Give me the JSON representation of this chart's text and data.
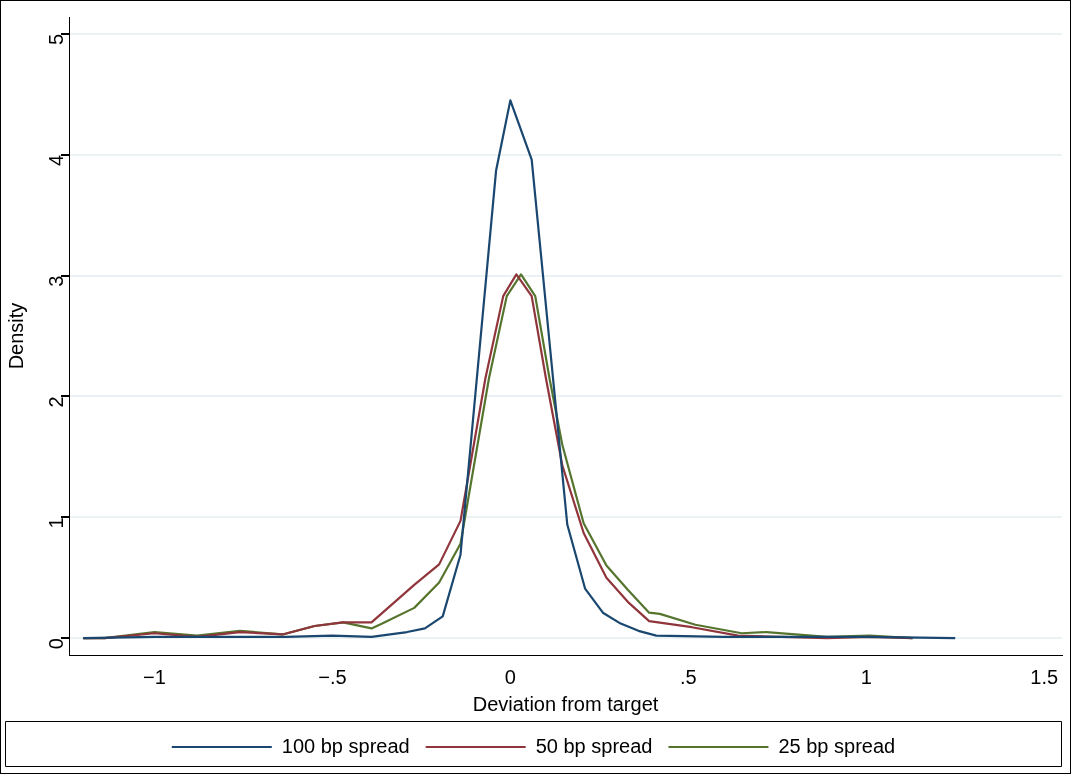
{
  "chart_data": {
    "type": "line",
    "xlabel": "Deviation from target",
    "ylabel": "Density",
    "xlim": [
      -1.24,
      1.55
    ],
    "ylim": [
      -0.14,
      5.14
    ],
    "xticks": [
      {
        "value": -1,
        "label": "−1"
      },
      {
        "value": -0.5,
        "label": "−.5"
      },
      0,
      {
        "value": 0.5,
        "label": ".5"
      },
      1,
      1.5
    ],
    "yticks": [
      0,
      1,
      2,
      3,
      4,
      5
    ],
    "grid": "y",
    "legend": "bottom",
    "marker": "none",
    "line_style": "solid",
    "series": [
      {
        "name": "100 bp spread",
        "color": "#1a476f",
        "x": [
          -1.2,
          -1.0,
          -0.63,
          -0.5,
          -0.39,
          -0.29,
          -0.24,
          -0.19,
          -0.14,
          -0.04,
          0.0,
          0.06,
          0.16,
          0.21,
          0.26,
          0.31,
          0.36,
          0.41,
          0.6,
          1.0,
          1.25
        ],
        "values": [
          0,
          0.01,
          0.01,
          0.02,
          0.01,
          0.05,
          0.08,
          0.18,
          0.69,
          3.87,
          4.45,
          3.96,
          0.94,
          0.41,
          0.21,
          0.12,
          0.06,
          0.02,
          0.01,
          0.01,
          0
        ]
      },
      {
        "name": "50 bp spread",
        "color": "#90353b",
        "x": [
          -1.2,
          -1.14,
          -1.0,
          -0.88,
          -0.76,
          -0.64,
          -0.55,
          -0.47,
          -0.39,
          -0.27,
          -0.2,
          -0.14,
          -0.07,
          -0.02,
          0.017,
          0.06,
          0.1,
          0.146,
          0.206,
          0.27,
          0.33,
          0.39,
          0.51,
          0.64,
          0.89,
          1.01,
          1.13
        ],
        "values": [
          0,
          0,
          0.04,
          0.01,
          0.05,
          0.03,
          0.1,
          0.13,
          0.13,
          0.44,
          0.61,
          0.97,
          2.15,
          2.83,
          3.01,
          2.83,
          2.15,
          1.43,
          0.87,
          0.5,
          0.3,
          0.14,
          0.09,
          0.02,
          0,
          0.01,
          0
        ]
      },
      {
        "name": "25 bp spread",
        "color": "#55752f",
        "x": [
          -1.2,
          -1.14,
          -1.0,
          -0.88,
          -0.76,
          -0.64,
          -0.55,
          -0.47,
          -0.39,
          -0.36,
          -0.27,
          -0.2,
          -0.14,
          -0.06,
          -0.01,
          0.03,
          0.07,
          0.11,
          0.146,
          0.206,
          0.27,
          0.33,
          0.39,
          0.42,
          0.52,
          0.65,
          0.72,
          0.89,
          1.01,
          1.13
        ],
        "values": [
          0,
          0,
          0.05,
          0.02,
          0.06,
          0.03,
          0.1,
          0.13,
          0.08,
          0.12,
          0.25,
          0.46,
          0.78,
          2.15,
          2.83,
          3.01,
          2.83,
          2.15,
          1.6,
          0.95,
          0.6,
          0.4,
          0.21,
          0.2,
          0.11,
          0.04,
          0.05,
          0.01,
          0.02,
          0
        ]
      }
    ]
  }
}
